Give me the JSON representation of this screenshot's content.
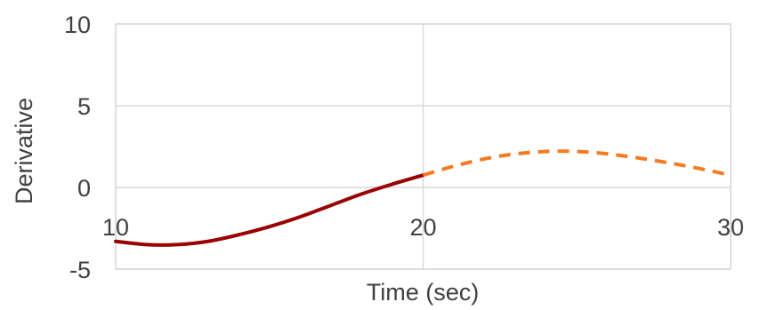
{
  "chart_data": {
    "type": "line",
    "xlabel": "Time (sec)",
    "ylabel": "Derivative",
    "xlim": [
      10,
      30
    ],
    "ylim": [
      -5,
      10
    ],
    "x_ticks": [
      10,
      20,
      30
    ],
    "y_ticks": [
      -5,
      0,
      5,
      10
    ],
    "x_tick_labels": [
      "10",
      "20",
      "30"
    ],
    "y_tick_labels": [
      "-5",
      "0",
      "5",
      "10"
    ],
    "grid": true,
    "series": [
      {
        "style": "solid",
        "color": "#9b0000",
        "x": [
          10,
          11,
          12,
          13,
          14,
          15,
          16,
          17,
          18,
          19,
          20
        ],
        "y": [
          -3.3,
          -3.5,
          -3.5,
          -3.3,
          -2.9,
          -2.4,
          -1.8,
          -1.1,
          -0.4,
          0.2,
          0.75
        ]
      },
      {
        "style": "dashed",
        "color": "#f47a20",
        "x": [
          20,
          21,
          22,
          23,
          24,
          25,
          26,
          27,
          28,
          29,
          30
        ],
        "y": [
          0.75,
          1.3,
          1.75,
          2.05,
          2.2,
          2.2,
          2.05,
          1.8,
          1.5,
          1.15,
          0.75
        ]
      }
    ]
  }
}
